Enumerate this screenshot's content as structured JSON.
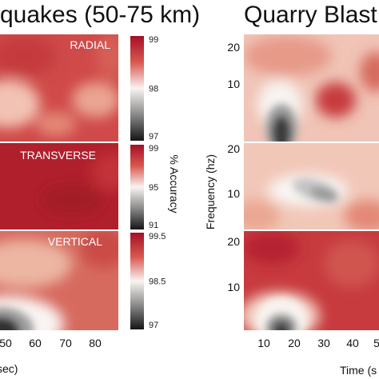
{
  "chart_data": [
    {
      "type": "heatmap",
      "title": "quakes (50-75 km)",
      "xlabel": "sec)",
      "xticks": [
        "50",
        "60",
        "70",
        "80"
      ],
      "colorbar_label": "% Accuracy",
      "colormap": [
        "#1a1a1a",
        "#ffffff",
        "#b2182b"
      ],
      "panels": [
        {
          "label": "RADIAL",
          "colorbar_ticks": [
            "99",
            "98",
            "97"
          ],
          "colorbar_range": [
            97,
            99
          ]
        },
        {
          "label": "TRANSVERSE",
          "colorbar_ticks": [
            "99",
            "95",
            "91"
          ],
          "colorbar_range": [
            91,
            99
          ]
        },
        {
          "label": "VERTICAL",
          "colorbar_ticks": [
            "99.5",
            "98.5",
            "97"
          ],
          "colorbar_range": [
            97,
            99.5
          ]
        }
      ]
    },
    {
      "type": "heatmap",
      "title": "Quarry Blast",
      "xlabel": "Time (s",
      "ylabel": "Frequency (hz)",
      "xticks": [
        "10",
        "20",
        "30",
        "40",
        "5"
      ],
      "yticks": [
        "20",
        "10"
      ],
      "panels": [
        {},
        {},
        {}
      ]
    }
  ]
}
